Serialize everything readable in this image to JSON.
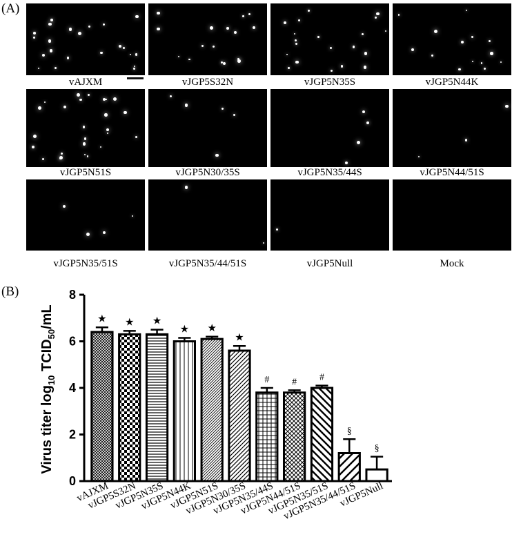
{
  "panel_a": {
    "label": "(A)",
    "images": [
      {
        "caption": "vAJXM",
        "dots": 22,
        "seed": 3
      },
      {
        "caption": "vJGP5S32N",
        "dots": 16,
        "seed": 11
      },
      {
        "caption": "vJGP5N35S",
        "dots": 20,
        "seed": 17
      },
      {
        "caption": "vJGP5N44K",
        "dots": 14,
        "seed": 23
      },
      {
        "caption": "vJGP5N51S",
        "dots": 26,
        "seed": 29
      },
      {
        "caption": "vJGP5N30/35S",
        "dots": 5,
        "seed": 31
      },
      {
        "caption": "vJGP5N35/44S",
        "dots": 4,
        "seed": 37
      },
      {
        "caption": "vJGP5N44/51S",
        "dots": 3,
        "seed": 41
      },
      {
        "caption": "vJGP5N35/51S",
        "dots": 4,
        "seed": 43
      },
      {
        "caption": "vJGP5N35/44/51S",
        "dots": 2,
        "seed": 47
      },
      {
        "caption": "vJGP5Null",
        "dots": 1,
        "seed": 53
      },
      {
        "caption": "Mock",
        "dots": 0,
        "seed": 59
      }
    ]
  },
  "panel_b": {
    "label": "(B)"
  },
  "chart_data": {
    "type": "bar",
    "categories": [
      "vAJXM",
      "vJGP5S32N",
      "vJGP5N35S",
      "vJGP5N44K",
      "vJGP5N51S",
      "vJGP5N30/35S",
      "vJGP5N35/44S",
      "vJGP5N44/51S",
      "vJGP5N35/51S",
      "vJGP5N35/44/51S",
      "vJGP5Null"
    ],
    "values": [
      6.4,
      6.3,
      6.3,
      6.0,
      6.1,
      5.6,
      3.8,
      3.8,
      4.0,
      1.2,
      0.5
    ],
    "errors": [
      0.2,
      0.15,
      0.2,
      0.15,
      0.1,
      0.2,
      0.2,
      0.1,
      0.1,
      0.6,
      0.55
    ],
    "significance": [
      "★",
      "★",
      "★",
      "★",
      "★",
      "★",
      "#",
      "#",
      "#",
      "§",
      "§"
    ],
    "patterns": [
      "crosshatch-fine",
      "checker",
      "horizontal",
      "vertical",
      "diag-right-fine",
      "diag-right",
      "grid",
      "diag-cross",
      "diag-right-wide",
      "diag-right-bold",
      "none"
    ],
    "ylabel_main": "Virus titer log",
    "ylabel_sub1": "10",
    "ylabel_mid": " TCID",
    "ylabel_sub2": "50",
    "ylabel_end": "/mL",
    "ylim": [
      0,
      8
    ],
    "yticks": [
      "0",
      "2",
      "4",
      "6",
      "8"
    ]
  }
}
